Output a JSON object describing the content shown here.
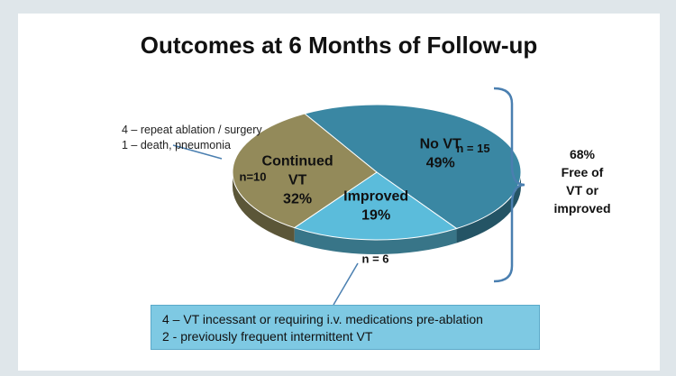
{
  "title": "Outcomes at 6 Months of Follow-up",
  "chart_data": {
    "type": "pie",
    "title": "Outcomes at 6 Months of Follow-up",
    "slices": [
      {
        "label": "No VT",
        "percent_label": "49%",
        "value": 49,
        "n_label": "n = 15",
        "n": 15,
        "color": "#3a87a3"
      },
      {
        "label": "Improved",
        "percent_label": "19%",
        "value": 19,
        "n_label": "n = 6",
        "n": 6,
        "color": "#5bbcdb"
      },
      {
        "label": "Continued VT",
        "label_lines": [
          "Continued",
          "VT"
        ],
        "percent_label": "32%",
        "value": 32,
        "n_label": "n=10",
        "n": 10,
        "color": "#938a5a"
      }
    ]
  },
  "notes": {
    "continued": [
      "4 – repeat ablation / surgery",
      "1 – death, pneumonia"
    ],
    "improved": [
      "4 – VT incessant or requiring i.v. medications pre-ablation",
      "2 -  previously frequent intermittent VT"
    ]
  },
  "summary": [
    "68%",
    "Free of",
    "VT or",
    "improved"
  ]
}
